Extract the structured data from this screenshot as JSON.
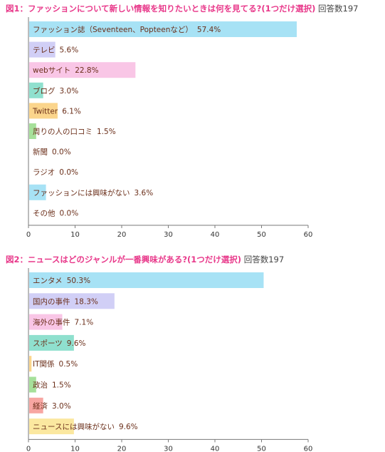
{
  "chart_data": [
    {
      "type": "bar",
      "orientation": "horizontal",
      "title": "図1：ファッションについて新しい情報を知りたいときは何を見てる?(1つだけ選択)",
      "respondents_label": "回答数197",
      "categories": [
        "ファッション誌（Seventeen、Popteenなど）",
        "テレビ",
        "webサイト",
        "ブログ",
        "Twitter",
        "周りの人の口コミ",
        "新聞",
        "ラジオ",
        "ファッションには興味がない",
        "その他"
      ],
      "values": [
        57.4,
        5.6,
        22.8,
        3.0,
        6.1,
        1.5,
        0.0,
        0.0,
        3.6,
        0.0
      ],
      "value_labels": [
        "57.4%",
        "5.6%",
        "22.8%",
        "3.0%",
        "6.1%",
        "1.5%",
        "0.0%",
        "0.0%",
        "3.6%",
        "0.0%"
      ],
      "colors": [
        "#a7e2f5",
        "#d1cff6",
        "#f9c6e6",
        "#8fe0ce",
        "#fbd58c",
        "#a6e09a",
        "#d6d6d6",
        "#d6d6d6",
        "#a7e2f5",
        "#d6d6d6"
      ],
      "xlim": [
        0,
        60
      ],
      "xticks": [
        "0",
        "10",
        "20",
        "30",
        "40",
        "50",
        "60"
      ],
      "xlabel": "",
      "ylabel": "",
      "grid": false
    },
    {
      "type": "bar",
      "orientation": "horizontal",
      "title": "図2：ニュースはどのジャンルが一番興味がある?(1つだけ選択)",
      "respondents_label": "回答数197",
      "categories": [
        "エンタメ",
        "国内の事件",
        "海外の事件",
        "スポーツ",
        "IT関係",
        "政治",
        "経済",
        "ニュースには興味がない"
      ],
      "values": [
        50.3,
        18.3,
        7.1,
        9.6,
        0.5,
        1.5,
        3.0,
        9.6
      ],
      "value_labels": [
        "50.3%",
        "18.3%",
        "7.1%",
        "9.6%",
        "0.5%",
        "1.5%",
        "3.0%",
        "9.6%"
      ],
      "colors": [
        "#a7e2f5",
        "#d1cff6",
        "#f9c6e6",
        "#8fe0ce",
        "#fbd58c",
        "#a6e09a",
        "#f7a6a2",
        "#fbe8a0"
      ],
      "xlim": [
        0,
        60
      ],
      "xticks": [
        "0",
        "10",
        "20",
        "30",
        "40",
        "50",
        "60"
      ],
      "xlabel": "",
      "ylabel": "",
      "grid": false
    }
  ]
}
